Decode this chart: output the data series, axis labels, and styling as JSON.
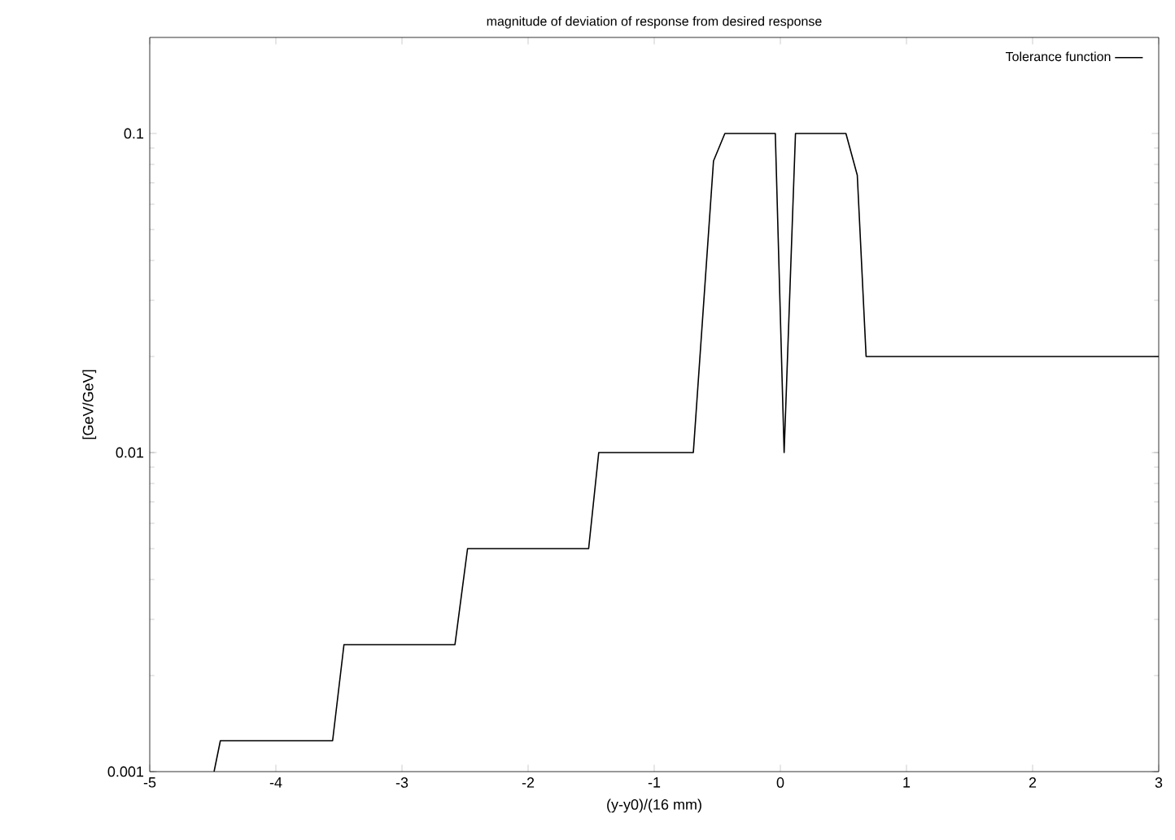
{
  "chart_data": {
    "type": "line",
    "title": "magnitude of deviation of response from desired response",
    "xlabel": "(y-y0)/(16 mm)",
    "ylabel": "[GeV/GeV]",
    "series": [
      {
        "name": "Tolerance function",
        "color": "#000000",
        "x": [
          -4.49,
          -4.44,
          -3.55,
          -3.46,
          -2.58,
          -2.48,
          -1.52,
          -1.44,
          -0.71,
          -0.69,
          -0.53,
          -0.44,
          -0.04,
          0.03,
          0.12,
          0.52,
          0.61,
          0.68,
          3
        ],
        "values": [
          0.001,
          0.00125,
          0.00125,
          0.0025,
          0.0025,
          0.005,
          0.005,
          0.01,
          0.01,
          0.01,
          0.082,
          0.1,
          0.1,
          0.01,
          0.1,
          0.1,
          0.074,
          0.02,
          0.02
        ]
      }
    ],
    "xlim": [
      -5,
      3
    ],
    "xticks": [
      -5,
      -4,
      -3,
      -2,
      -1,
      0,
      1,
      2,
      3
    ],
    "ylim": [
      0.001,
      0.2
    ],
    "yticks": [
      0.001,
      0.01,
      0.1
    ],
    "log": "y",
    "legend": "top right",
    "grid": false
  }
}
